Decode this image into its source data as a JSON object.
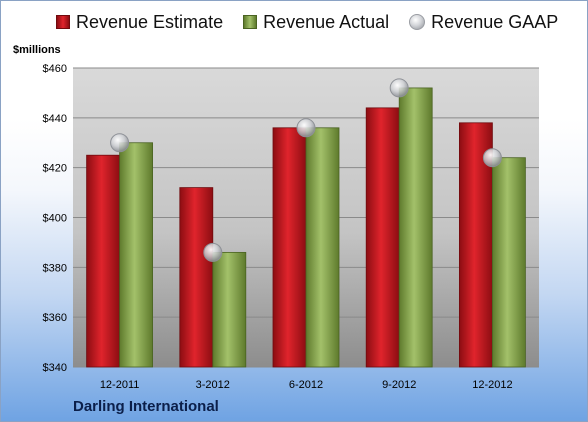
{
  "chart_data": {
    "type": "bar",
    "title": "",
    "xlabel": "",
    "ylabel": "$millions",
    "categories": [
      "12-2011",
      "3-2012",
      "6-2012",
      "9-2012",
      "12-2012"
    ],
    "series": [
      {
        "name": "Revenue Estimate",
        "type": "bar",
        "color": "#d41f26",
        "values": [
          425,
          412,
          436,
          444,
          438
        ]
      },
      {
        "name": "Revenue Actual",
        "type": "bar",
        "color": "#8fad57",
        "values": [
          430,
          386,
          436,
          452,
          424
        ]
      },
      {
        "name": "Revenue GAAP",
        "type": "marker",
        "color": "#c8cacf",
        "values": [
          430,
          386,
          436,
          452,
          424
        ]
      }
    ],
    "ylim": [
      340,
      460
    ],
    "yticks": [
      340,
      360,
      380,
      400,
      420,
      440,
      460
    ],
    "ytick_labels": [
      "$340",
      "$360",
      "$380",
      "$400",
      "$420",
      "$440",
      "$460"
    ],
    "grid": true,
    "legend_position": "top"
  },
  "footer": {
    "company": "Darling International"
  }
}
